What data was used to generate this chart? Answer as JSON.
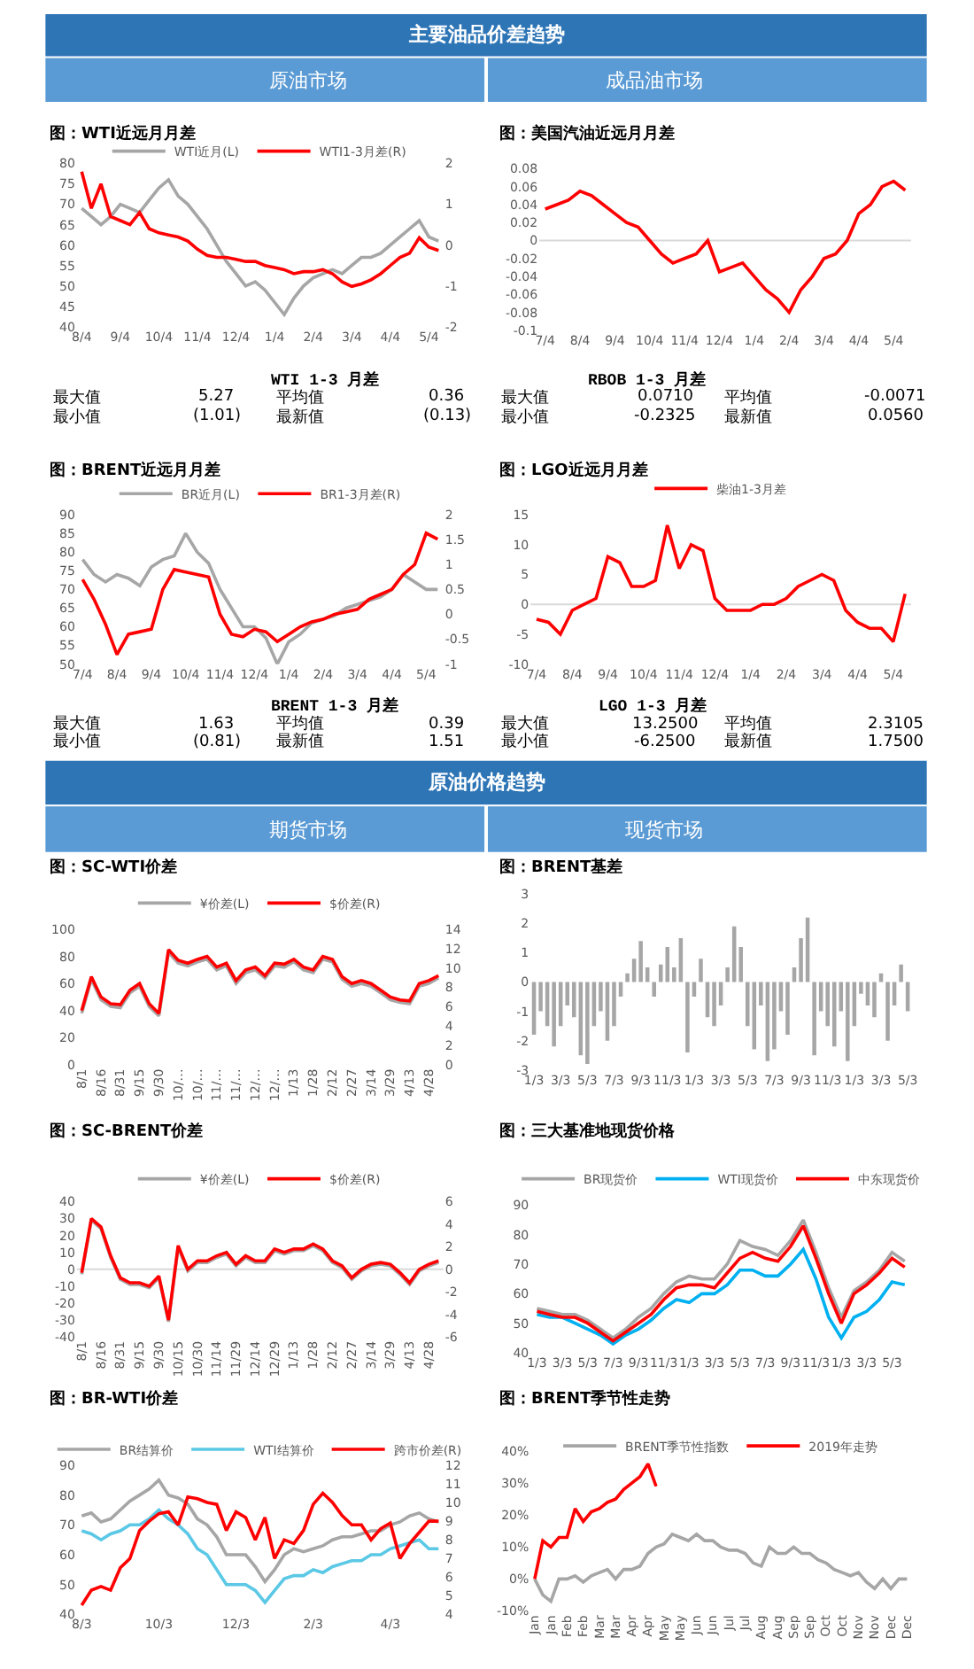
{
  "chart_data": [
    {
      "type": "other",
      "title": "主要油品价差趋势",
      "annotations": [
        "原油市场",
        "成品油市场"
      ]
    },
    {
      "type": "line",
      "title": "图：WTI近远月月差",
      "legend": "top",
      "categories": [
        "8/4",
        null,
        null,
        null,
        "9/4",
        null,
        null,
        null,
        "10/4",
        null,
        null,
        null,
        "11/4",
        null,
        null,
        null,
        "12/4",
        null,
        null,
        null,
        "1/4",
        null,
        null,
        null,
        "2/4",
        null,
        null,
        null,
        "3/4",
        null,
        null,
        null,
        "4/4",
        null,
        null,
        null,
        "5/4",
        null
      ],
      "ylim": [
        40,
        80
      ],
      "yticks": [
        40,
        45,
        50,
        55,
        60,
        65,
        70,
        75,
        80
      ],
      "y2lim": [
        -2,
        2
      ],
      "y2ticks": [
        -2,
        -1,
        0,
        1,
        2
      ],
      "series": [
        {
          "name": "WTI近月(L)",
          "color": "#a6a6a6",
          "values": [
            69,
            67,
            65,
            67,
            70,
            69,
            68,
            71,
            74,
            76,
            72,
            70,
            67,
            64,
            60,
            56,
            53,
            50,
            51,
            49,
            46,
            43,
            47,
            50,
            52,
            53,
            54,
            53,
            55,
            57,
            57,
            58,
            60,
            62,
            64,
            66,
            62,
            61
          ]
        },
        {
          "name": "WTI1-3月差(R)",
          "color": "#ff0000",
          "axis": "y2",
          "values": [
            1.8,
            0.9,
            1.5,
            0.7,
            0.6,
            0.5,
            0.8,
            0.4,
            0.3,
            0.25,
            0.2,
            0.1,
            -0.1,
            -0.25,
            -0.3,
            -0.3,
            -0.35,
            -0.4,
            -0.4,
            -0.5,
            -0.55,
            -0.6,
            -0.7,
            -0.65,
            -0.65,
            -0.6,
            -0.7,
            -0.9,
            -1.01,
            -0.95,
            -0.85,
            -0.7,
            -0.5,
            -0.3,
            -0.2,
            0.18,
            -0.05,
            -0.13
          ]
        }
      ]
    },
    {
      "type": "line",
      "title": "图：美国汽油近远月月差",
      "categories": [
        "7/4",
        null,
        null,
        "8/4",
        null,
        null,
        "9/4",
        null,
        null,
        "10/4",
        null,
        null,
        "11/4",
        null,
        null,
        "12/4",
        null,
        null,
        "1/4",
        null,
        null,
        "2/4",
        null,
        null,
        "3/4",
        null,
        null,
        "4/4",
        null,
        null,
        "5/4",
        null
      ],
      "ylim": [
        -0.1,
        0.08
      ],
      "yticks": [
        -0.1,
        -0.08,
        -0.06,
        -0.04,
        -0.02,
        0,
        0.02,
        0.04,
        0.06,
        0.08
      ],
      "ref_lines": [
        {
          "axis": "y",
          "value": 0,
          "color": "#d9d9d9"
        }
      ],
      "color": "#ff0000",
      "values": [
        0.035,
        0.04,
        0.045,
        0.055,
        0.05,
        0.04,
        0.03,
        0.02,
        0.015,
        0.0,
        -0.015,
        -0.025,
        -0.02,
        -0.015,
        0.0,
        -0.035,
        -0.03,
        -0.025,
        -0.04,
        -0.055,
        -0.065,
        -0.08,
        -0.055,
        -0.04,
        -0.02,
        -0.015,
        0.0,
        0.03,
        0.04,
        0.06,
        0.066,
        0.056
      ]
    },
    {
      "type": "other",
      "title": "WTI 1-3 月差",
      "annotations": [
        "最大值",
        "5.27",
        "平均值",
        "0.36",
        "最小值",
        "(1.01)",
        "最新值",
        "(0.13)"
      ]
    },
    {
      "type": "other",
      "title": "RBOB 1-3 月差",
      "annotations": [
        "最大值",
        "0.0710",
        "平均值",
        "-0.0071",
        "最小值",
        "-0.2325",
        "最新值",
        "0.0560"
      ]
    },
    {
      "type": "line",
      "title": "图：BRENT近远月月差",
      "legend": "top",
      "categories": [
        "7/4",
        null,
        null,
        "8/4",
        null,
        null,
        "9/4",
        null,
        null,
        "10/4",
        null,
        null,
        "11/4",
        null,
        null,
        "12/4",
        null,
        null,
        "1/4",
        null,
        null,
        "2/4",
        null,
        null,
        "3/4",
        null,
        null,
        "4/4",
        null,
        null,
        "5/4",
        null
      ],
      "ylim": [
        50,
        90
      ],
      "yticks": [
        50,
        55,
        60,
        65,
        70,
        75,
        80,
        85,
        90
      ],
      "y2lim": [
        -1,
        2
      ],
      "y2ticks": [
        -1,
        -0.5,
        0,
        0.5,
        1,
        1.5,
        2
      ],
      "series": [
        {
          "name": "BR近月(L)",
          "color": "#a6a6a6",
          "values": [
            78,
            74,
            72,
            74,
            73,
            71,
            76,
            78,
            79,
            85,
            80,
            77,
            70,
            65,
            60,
            60,
            57,
            50,
            56,
            58,
            61,
            62,
            63,
            65,
            66,
            67,
            68,
            70,
            74,
            72,
            70,
            70
          ]
        },
        {
          "name": "BR1-3月差(R)",
          "color": "#ff0000",
          "axis": "y2",
          "values": [
            0.7,
            0.3,
            -0.2,
            -0.81,
            -0.4,
            -0.35,
            -0.3,
            0.5,
            0.9,
            0.85,
            0.8,
            0.75,
            0.0,
            -0.4,
            -0.45,
            -0.3,
            -0.35,
            -0.55,
            -0.4,
            -0.25,
            -0.15,
            -0.1,
            0.0,
            0.05,
            0.1,
            0.3,
            0.4,
            0.5,
            0.8,
            1.0,
            1.63,
            1.51
          ]
        }
      ]
    },
    {
      "type": "line",
      "title": "图：LGO近远月月差",
      "legend": "top",
      "categories": [
        "7/4",
        null,
        null,
        "8/4",
        null,
        null,
        "9/4",
        null,
        null,
        "10/4",
        null,
        null,
        "11/4",
        null,
        null,
        "12/4",
        null,
        null,
        "1/4",
        null,
        null,
        "2/4",
        null,
        null,
        "3/4",
        null,
        null,
        "4/4",
        null,
        null,
        "5/4",
        null
      ],
      "ylim": [
        -10,
        15
      ],
      "yticks": [
        -10,
        -5,
        0,
        5,
        10,
        15
      ],
      "ref_lines": [
        {
          "axis": "y",
          "value": 0,
          "color": "#d9d9d9"
        }
      ],
      "series": [
        {
          "name": "柴油1-3月差",
          "color": "#ff0000",
          "values": [
            -2.5,
            -3,
            -5,
            -1,
            0,
            1,
            8,
            7,
            3,
            3,
            4,
            13.25,
            6,
            10,
            9,
            1,
            -1,
            -1,
            -1,
            0,
            0,
            1,
            3,
            4,
            5,
            4,
            -1,
            -3,
            -4,
            -4,
            -6.25,
            1.75
          ]
        }
      ]
    },
    {
      "type": "other",
      "title": "BRENT 1-3 月差",
      "annotations": [
        "最大值",
        "1.63",
        "平均值",
        "0.39",
        "最小值",
        "(0.81)",
        "最新值",
        "1.51"
      ]
    },
    {
      "type": "other",
      "title": "LGO 1-3 月差",
      "annotations": [
        "最大值",
        "13.2500",
        "平均值",
        "2.3105",
        "最小值",
        "-6.2500",
        "最新值",
        "1.7500"
      ]
    },
    {
      "type": "other",
      "title": "原油价格趋势",
      "annotations": [
        "期货市场",
        "现货市场"
      ]
    },
    {
      "type": "line",
      "title": "图：SC-WTI价差",
      "legend": "top",
      "categories": [
        "8/1",
        null,
        "8/16",
        null,
        "8/31",
        null,
        "9/15",
        null,
        "9/30",
        null,
        "10/…",
        null,
        "10/…",
        null,
        "11/…",
        null,
        "11/…",
        null,
        "12/…",
        null,
        "12/…",
        null,
        "1/13",
        null,
        "1/28",
        null,
        "2/12",
        null,
        "2/27",
        null,
        "3/14",
        null,
        "3/29",
        null,
        "4/13",
        null,
        "4/28",
        null
      ],
      "ylim": [
        0,
        100
      ],
      "yticks": [
        0,
        20,
        40,
        60,
        80,
        100
      ],
      "y2lim": [
        0,
        14
      ],
      "y2ticks": [
        0,
        2,
        4,
        6,
        8,
        10,
        12,
        14
      ],
      "series": [
        {
          "name": "¥价差(L)",
          "color": "#a6a6a6",
          "values": [
            38,
            63,
            48,
            43,
            42,
            53,
            58,
            43,
            36,
            83,
            75,
            73,
            76,
            78,
            70,
            73,
            60,
            68,
            70,
            64,
            73,
            72,
            76,
            70,
            68,
            78,
            76,
            63,
            58,
            60,
            58,
            53,
            48,
            46,
            45,
            58,
            60,
            64
          ]
        },
        {
          "name": "$价差(R)",
          "color": "#ff0000",
          "axis": "y2",
          "values": [
            5.6,
            9.1,
            7.0,
            6.3,
            6.2,
            7.7,
            8.4,
            6.3,
            5.3,
            11.9,
            10.8,
            10.5,
            10.9,
            11.2,
            10.1,
            10.5,
            8.7,
            9.8,
            10.1,
            9.2,
            10.5,
            10.4,
            10.9,
            10.1,
            9.8,
            11.2,
            10.9,
            9.1,
            8.4,
            8.7,
            8.4,
            7.7,
            7.0,
            6.7,
            6.6,
            8.4,
            8.7,
            9.2
          ]
        }
      ]
    },
    {
      "type": "bar",
      "title": "图：BRENT基差",
      "categories": [
        "1/3",
        null,
        null,
        null,
        "3/3",
        null,
        null,
        null,
        "5/3",
        null,
        null,
        null,
        "7/3",
        null,
        null,
        null,
        "9/3",
        null,
        null,
        null,
        "11/3",
        null,
        null,
        null,
        "1/3",
        null,
        null,
        null,
        "3/3",
        null,
        null,
        null,
        "5/3",
        null,
        null,
        null,
        "7/3",
        null,
        null,
        null,
        "9/3",
        null,
        null,
        null,
        "11/3",
        null,
        null,
        null,
        "1/3",
        null,
        null,
        null,
        "3/3",
        null,
        null,
        null,
        "5/3"
      ],
      "ylim": [
        -3,
        3
      ],
      "yticks": [
        -3,
        -2,
        -1,
        0,
        1,
        2,
        3
      ],
      "color": "#a6a6a6",
      "values": [
        -1.8,
        -1,
        -1.5,
        -2.2,
        -1.5,
        -0.8,
        -1.2,
        -2.5,
        -2.8,
        -1.5,
        -1,
        -2,
        -1.5,
        -0.5,
        0.3,
        0.8,
        1.4,
        0.5,
        -0.5,
        0.6,
        1.2,
        0.5,
        1.5,
        -2.4,
        -0.5,
        0.8,
        -1.2,
        -1.5,
        -0.8,
        0.5,
        1.9,
        1.2,
        -1.5,
        -2.3,
        -0.8,
        -2.7,
        -2.3,
        -1,
        -1.8,
        0.5,
        1.5,
        2.2,
        -2.5,
        -1,
        -1.5,
        -2.2,
        -1,
        -2.7,
        -1.5,
        -0.4,
        -0.8,
        -1.2,
        0.3,
        -2,
        -0.8,
        0.6,
        -1.0
      ]
    },
    {
      "type": "line",
      "title": "图：SC-BRENT价差",
      "legend": "top",
      "categories": [
        "8/1",
        null,
        "8/16",
        null,
        "8/31",
        null,
        "9/15",
        null,
        "9/30",
        null,
        "10/15",
        null,
        "10/30",
        null,
        "11/14",
        null,
        "11/29",
        null,
        "12/14",
        null,
        "12/29",
        null,
        "1/13",
        null,
        "1/28",
        null,
        "2/12",
        null,
        "2/27",
        null,
        "3/14",
        null,
        "3/29",
        null,
        "4/13",
        null,
        "4/28",
        null
      ],
      "ylim": [
        -40,
        40
      ],
      "yticks": [
        -40,
        -30,
        -20,
        -10,
        0,
        10,
        20,
        30,
        40
      ],
      "y2lim": [
        -6,
        6
      ],
      "y2ticks": [
        -6,
        -4,
        -2,
        0,
        2,
        4,
        6
      ],
      "ref_lines": [
        {
          "axis": "y",
          "value": 0,
          "color": "#d9d9d9"
        }
      ],
      "series": [
        {
          "name": "¥价差(L)",
          "color": "#a6a6a6",
          "values": [
            -3,
            29,
            24,
            7,
            -6,
            -9,
            -9,
            -11,
            -5,
            -31,
            13,
            -1,
            4,
            4,
            7,
            9,
            2,
            7,
            4,
            4,
            11,
            9,
            11,
            11,
            14,
            11,
            4,
            1,
            -6,
            -1,
            2,
            3,
            2,
            -3,
            -9,
            -1,
            2,
            4
          ]
        },
        {
          "name": "$价差(R)",
          "color": "#ff0000",
          "axis": "y2",
          "values": [
            -0.3,
            4.5,
            3.75,
            1.2,
            -0.75,
            -1.2,
            -1.2,
            -1.5,
            -0.6,
            -4.5,
            2.1,
            0,
            0.75,
            0.75,
            1.2,
            1.5,
            0.45,
            1.2,
            0.75,
            0.75,
            1.8,
            1.5,
            1.8,
            1.8,
            2.25,
            1.8,
            0.75,
            0.3,
            -0.75,
            0,
            0.45,
            0.6,
            0.45,
            -0.3,
            -1.2,
            0,
            0.45,
            0.75
          ]
        }
      ]
    },
    {
      "type": "line",
      "title": "图：三大基准地现货价格",
      "legend": "top",
      "categories": [
        "1/3",
        null,
        "3/3",
        null,
        "5/3",
        null,
        "7/3",
        null,
        "9/3",
        null,
        "11/3",
        null,
        "1/3",
        null,
        "3/3",
        null,
        "5/3",
        null,
        "7/3",
        null,
        "9/3",
        null,
        "11/3",
        null,
        "1/3",
        null,
        "3/3",
        null,
        "5/3",
        null
      ],
      "ylim": [
        40,
        90
      ],
      "yticks": [
        40,
        50,
        60,
        70,
        80,
        90
      ],
      "series": [
        {
          "name": "BR现货价",
          "color": "#a6a6a6",
          "values": [
            55,
            54,
            53,
            53,
            51,
            48,
            45,
            48,
            52,
            55,
            60,
            64,
            66,
            65,
            65,
            70,
            78,
            76,
            75,
            73,
            78,
            85,
            74,
            62,
            52,
            61,
            64,
            68,
            74,
            71
          ]
        },
        {
          "name": "WTI现货价",
          "color": "#00b0f0",
          "values": [
            53,
            52,
            52,
            50,
            48,
            46,
            43,
            46,
            48,
            51,
            55,
            58,
            57,
            60,
            60,
            63,
            68,
            68,
            66,
            66,
            70,
            75,
            65,
            52,
            45,
            52,
            54,
            58,
            64,
            63
          ]
        },
        {
          "name": "中东现货价",
          "color": "#ff0000",
          "values": [
            54,
            53,
            52,
            52,
            50,
            47,
            44,
            47,
            50,
            53,
            58,
            62,
            63,
            63,
            62,
            67,
            72,
            74,
            72,
            71,
            76,
            83,
            72,
            60,
            50,
            60,
            63,
            67,
            72,
            69
          ]
        }
      ]
    },
    {
      "type": "line",
      "title": "图：BR-WTI价差",
      "legend": "top",
      "categories": [
        "8/3",
        null,
        null,
        null,
        null,
        null,
        null,
        null,
        "10/3",
        null,
        null,
        null,
        null,
        null,
        null,
        null,
        "12/3",
        null,
        null,
        null,
        null,
        null,
        null,
        null,
        "2/3",
        null,
        null,
        null,
        null,
        null,
        null,
        null,
        "4/3",
        null,
        null,
        null,
        null,
        null
      ],
      "ylim": [
        40,
        90
      ],
      "yticks": [
        40,
        50,
        60,
        70,
        80,
        90
      ],
      "y2lim": [
        4,
        12
      ],
      "y2ticks": [
        4,
        5,
        6,
        7,
        8,
        9,
        10,
        11,
        12
      ],
      "series": [
        {
          "name": "BR结算价",
          "color": "#a6a6a6",
          "values": [
            73,
            74,
            71,
            72,
            75,
            78,
            80,
            82,
            85,
            80,
            79,
            77,
            72,
            70,
            66,
            60,
            60,
            60,
            56,
            51,
            55,
            60,
            62,
            61,
            62,
            63,
            65,
            66,
            66,
            67,
            68,
            68,
            70,
            71,
            73,
            74,
            72,
            71
          ]
        },
        {
          "name": "WTI结算价",
          "color": "#5bc8e6",
          "values": [
            68,
            67,
            65,
            67,
            68,
            70,
            70,
            72,
            75,
            72,
            70,
            67,
            62,
            60,
            55,
            50,
            50,
            50,
            48,
            44,
            48,
            52,
            53,
            53,
            55,
            54,
            56,
            57,
            58,
            58,
            60,
            60,
            62,
            63,
            64,
            65,
            62,
            62
          ]
        },
        {
          "name": "跨市价差(R)",
          "color": "#ff0000",
          "axis": "y2",
          "values": [
            4.5,
            5.3,
            5.5,
            5.3,
            6.5,
            7,
            8.5,
            9,
            9.4,
            9.5,
            8.8,
            10.3,
            10.2,
            10,
            9.9,
            8.5,
            9.5,
            9.2,
            8,
            9.2,
            7,
            8,
            7.8,
            8.5,
            9.9,
            10.5,
            10,
            9.3,
            8.8,
            8.8,
            8,
            8.6,
            8.9,
            7,
            7.8,
            8.4,
            9,
            9
          ]
        }
      ]
    },
    {
      "type": "line",
      "title": "图：BRENT季节性走势",
      "legend": "top",
      "categories": [
        "Jan",
        null,
        "Jan",
        null,
        "Feb",
        null,
        "Feb",
        null,
        "Mar",
        null,
        "Mar",
        null,
        "Apr",
        null,
        "Apr",
        null,
        "May",
        null,
        "May",
        null,
        "Jun",
        null,
        "Jun",
        null,
        "Jul",
        null,
        "Jul",
        null,
        "Aug",
        null,
        "Aug",
        null,
        "Sep",
        null,
        "Sep",
        null,
        "Oct",
        null,
        "Oct",
        null,
        "Nov",
        null,
        "Nov",
        null,
        "Dec",
        null,
        "Dec"
      ],
      "ylim": [
        -10,
        40
      ],
      "yticks": [
        {
          "value": -10,
          "label": "-10%"
        },
        {
          "value": 0,
          "label": "0%"
        },
        {
          "value": 10,
          "label": "10%"
        },
        {
          "value": 20,
          "label": "20%"
        },
        {
          "value": 30,
          "label": "30%"
        },
        {
          "value": 40,
          "label": "40%"
        }
      ],
      "series": [
        {
          "name": "BRENT季节性指数",
          "color": "#a6a6a6",
          "values": [
            0,
            -5,
            -7,
            0,
            0,
            1,
            -1,
            1,
            2,
            3,
            0,
            3,
            3,
            4,
            8,
            10,
            11,
            14,
            13,
            12,
            14,
            12,
            12,
            10,
            9,
            9,
            8,
            5,
            4,
            10,
            8,
            8,
            10,
            8,
            8,
            6,
            5,
            3,
            2,
            1,
            2,
            -1,
            -3,
            0,
            -3,
            0,
            0
          ]
        },
        {
          "name": "2019年走势",
          "color": "#ff0000",
          "values": [
            0,
            12,
            10,
            13,
            13,
            22,
            18,
            21,
            22,
            24,
            25,
            28,
            30,
            32,
            36,
            29,
            null,
            null,
            null,
            null,
            null,
            null,
            null,
            null,
            null,
            null,
            null,
            null,
            null,
            null,
            null,
            null,
            null,
            null,
            null,
            null,
            null,
            null,
            null,
            null,
            null,
            null,
            null,
            null,
            null,
            null,
            null
          ]
        }
      ]
    }
  ]
}
